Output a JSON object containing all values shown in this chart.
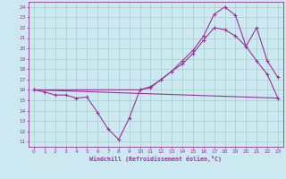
{
  "xlabel": "Windchill (Refroidissement éolien,°C)",
  "background_color": "#cce8f0",
  "grid_color": "#aad4cc",
  "line_color": "#993399",
  "xlim": [
    -0.5,
    23.5
  ],
  "ylim": [
    10.5,
    24.5
  ],
  "x_ticks": [
    0,
    1,
    2,
    3,
    4,
    5,
    6,
    7,
    8,
    9,
    10,
    11,
    12,
    13,
    14,
    15,
    16,
    17,
    18,
    19,
    20,
    21,
    22,
    23
  ],
  "y_ticks": [
    11,
    12,
    13,
    14,
    15,
    16,
    17,
    18,
    19,
    20,
    21,
    22,
    23,
    24
  ],
  "line1_x": [
    0,
    1,
    2,
    3,
    4,
    5,
    6,
    7,
    8,
    9,
    10,
    11,
    12,
    13,
    14,
    15,
    16,
    17,
    18,
    19,
    20,
    21,
    22,
    23
  ],
  "line1_y": [
    16.0,
    15.8,
    15.5,
    15.5,
    15.2,
    15.3,
    13.8,
    12.2,
    11.2,
    13.3,
    16.0,
    16.2,
    17.0,
    17.8,
    18.8,
    19.8,
    21.2,
    23.3,
    24.0,
    23.2,
    20.2,
    22.0,
    18.8,
    17.2
  ],
  "line2_x": [
    0,
    23
  ],
  "line2_y": [
    16.0,
    15.2
  ],
  "line3_x": [
    0,
    10,
    11,
    12,
    13,
    14,
    15,
    16,
    17,
    18,
    19,
    20,
    21,
    22,
    23
  ],
  "line3_y": [
    16.0,
    16.0,
    16.3,
    17.0,
    17.8,
    18.5,
    19.5,
    20.8,
    22.0,
    21.8,
    21.2,
    20.2,
    18.8,
    17.5,
    15.2
  ]
}
